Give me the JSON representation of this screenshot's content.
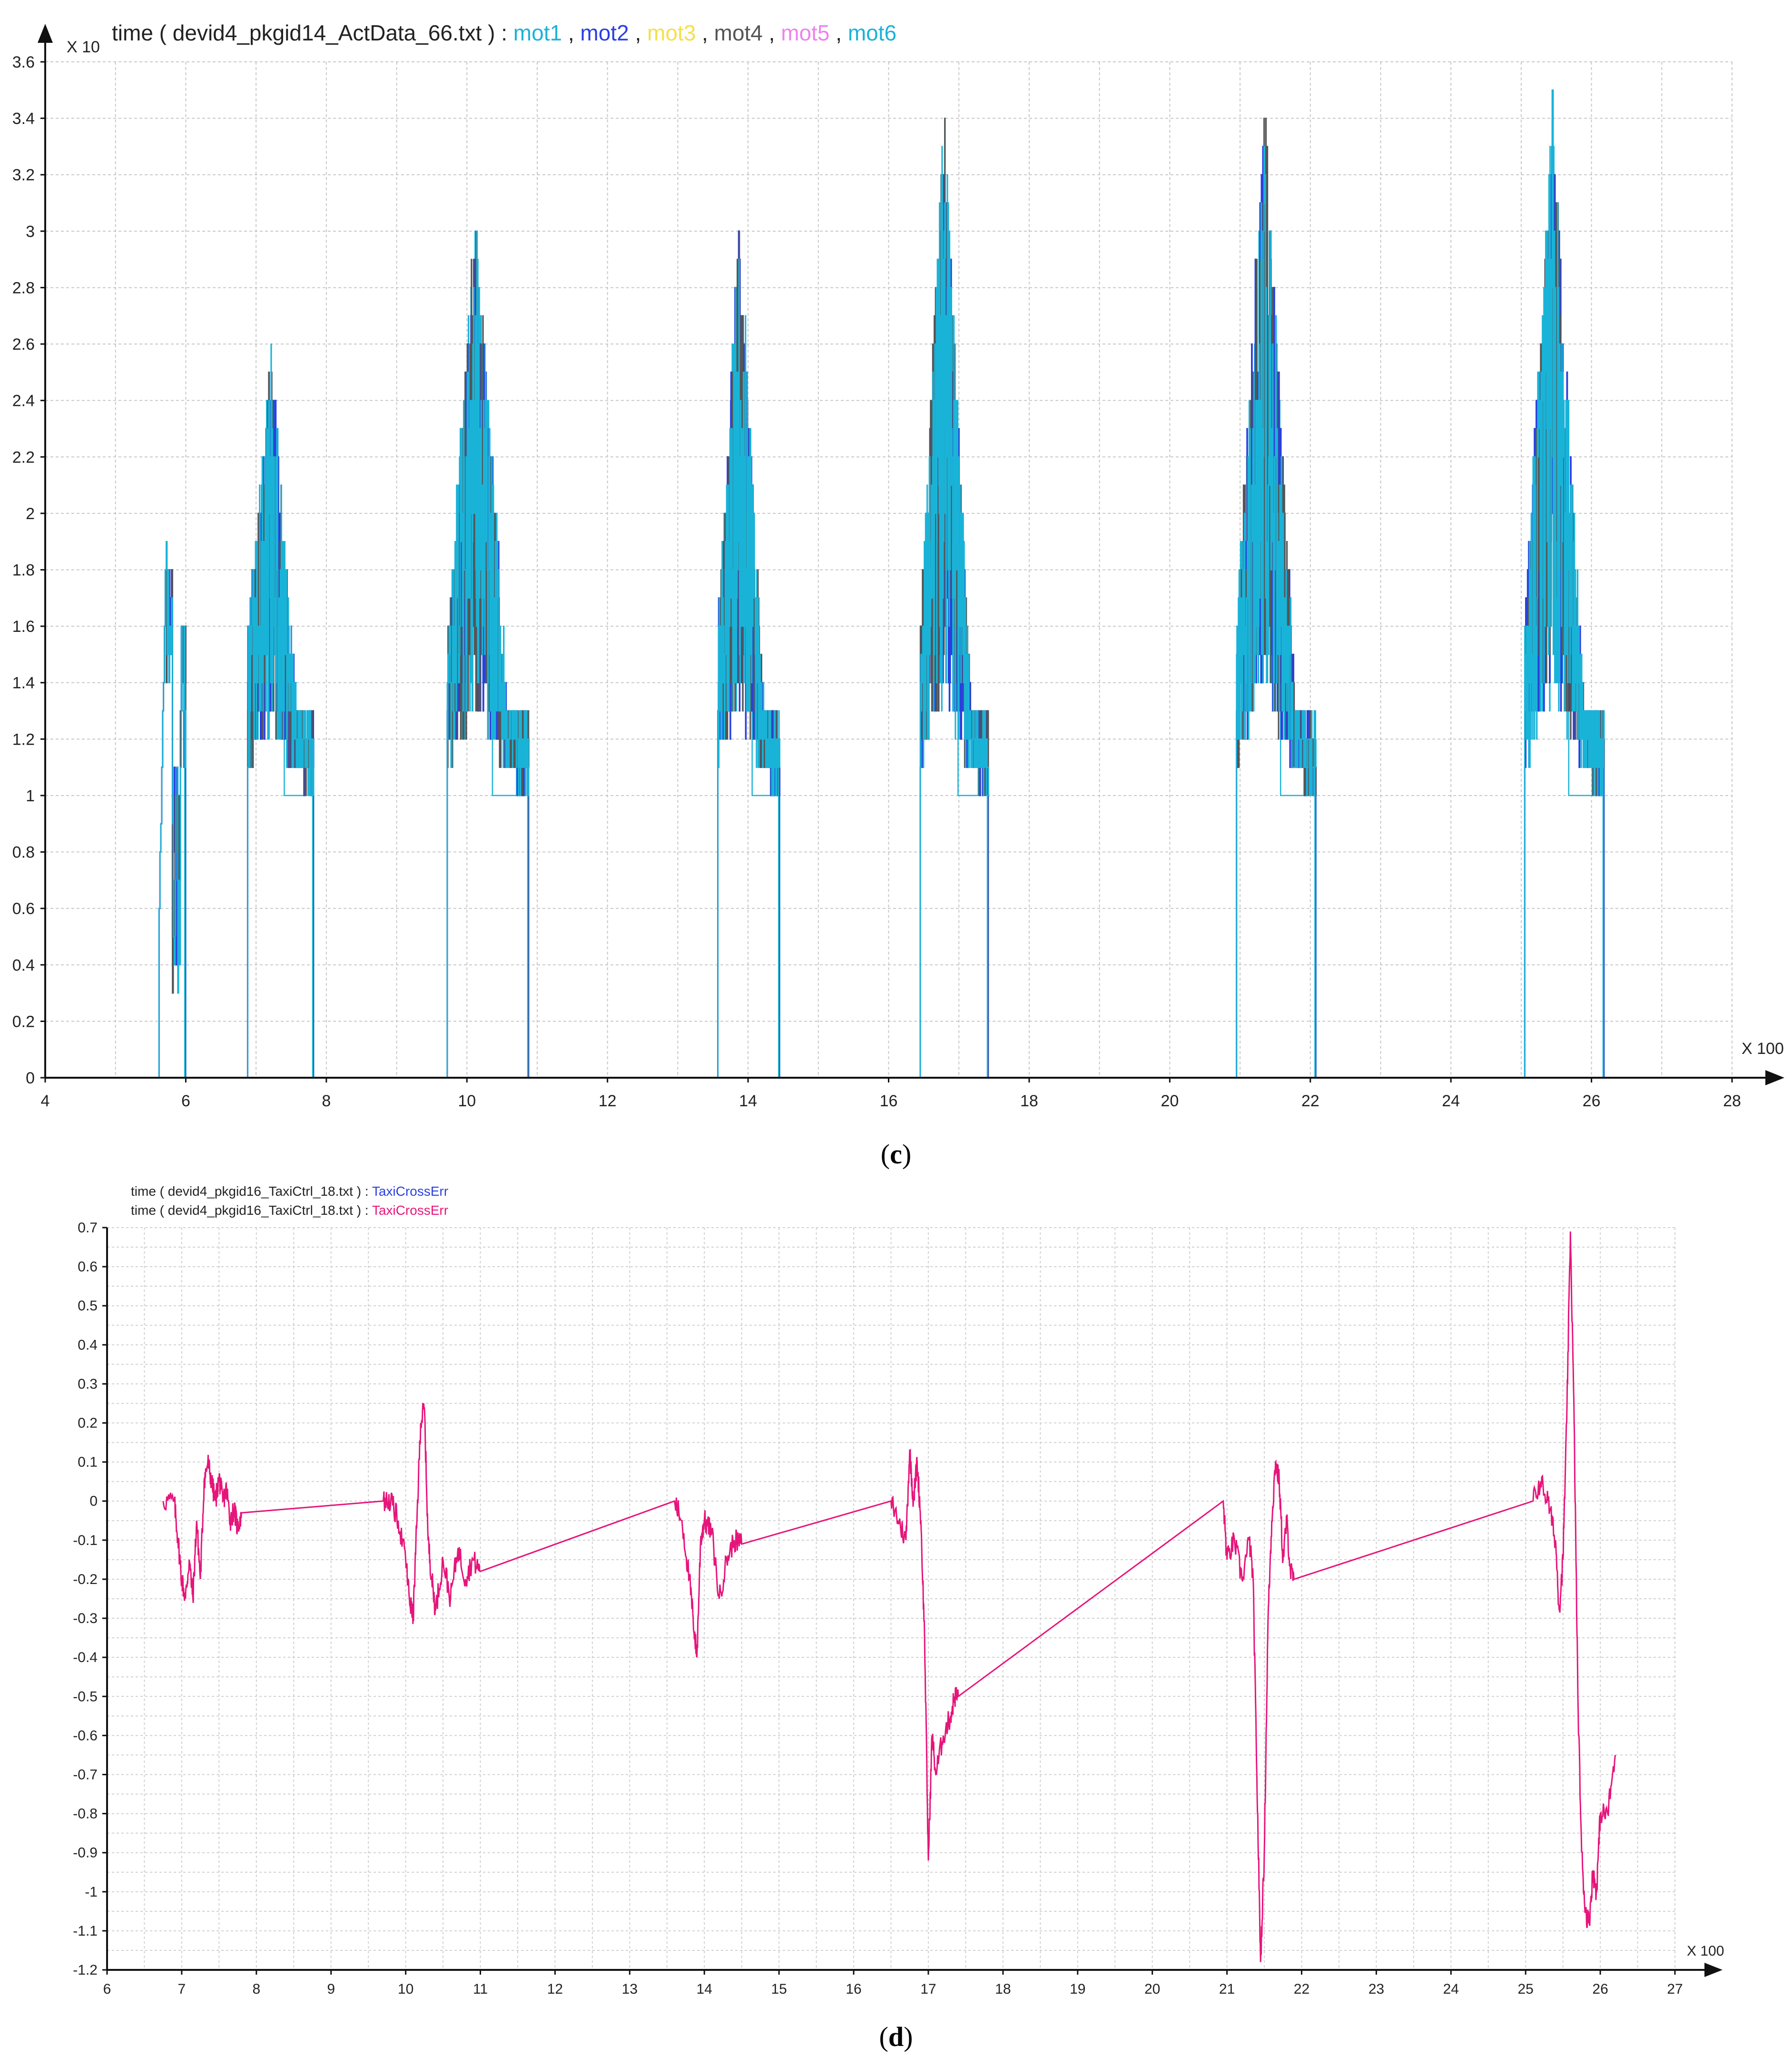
{
  "chart_data": [
    {
      "type": "line",
      "panel_label": "c",
      "title": {
        "prefix": "time ( devid4_pkgid14_ActData_66.txt ) : ",
        "separator": " , "
      },
      "x_multiplier": "X 100",
      "y_multiplier": "X 10",
      "xlim": [
        4,
        28
      ],
      "ylim": [
        0,
        3.6
      ],
      "x_ticks": [
        "4",
        "6",
        "8",
        "10",
        "12",
        "14",
        "16",
        "18",
        "20",
        "22",
        "24",
        "26",
        "28"
      ],
      "y_ticks": [
        "0",
        "0.2",
        "0.4",
        "0.6",
        "0.8",
        "1",
        "1.2",
        "1.4",
        "1.6",
        "1.8",
        "2",
        "2.2",
        "2.4",
        "2.6",
        "2.8",
        "3",
        "3.2",
        "3.4",
        "3.6"
      ],
      "grid": true,
      "legend": "inline-title",
      "series": [
        {
          "name": "mot1",
          "color": "#1ab3d8"
        },
        {
          "name": "mot2",
          "color": "#2a3fe0"
        },
        {
          "name": "mot3",
          "color": "#f4e04a"
        },
        {
          "name": "mot4",
          "color": "#555555"
        },
        {
          "name": "mot5",
          "color": "#ee82ee"
        },
        {
          "name": "mot6",
          "color": "#1ab3d8"
        }
      ],
      "bursts": [
        {
          "start": 5.62,
          "end": 6.0,
          "low": 1.1,
          "peak": 1.9,
          "dip": 0.3
        },
        {
          "start": 6.88,
          "end": 7.82,
          "low": 1.0,
          "peak": 2.6
        },
        {
          "start": 9.72,
          "end": 10.88,
          "low": 1.0,
          "peak": 3.1
        },
        {
          "start": 13.57,
          "end": 14.45,
          "low": 1.0,
          "peak": 3.1
        },
        {
          "start": 16.45,
          "end": 17.42,
          "low": 1.0,
          "peak": 3.5
        },
        {
          "start": 20.95,
          "end": 22.08,
          "low": 1.0,
          "peak": 3.5
        },
        {
          "start": 25.05,
          "end": 26.18,
          "low": 1.0,
          "peak": 3.5
        }
      ]
    },
    {
      "type": "line",
      "panel_label": "d",
      "legend_lines": [
        {
          "prefix": "time ( devid4_pkgid16_TaxiCtrl_18.txt ) : ",
          "name": "TaxiCrossErr",
          "color": "#2a3fe0"
        },
        {
          "prefix": "time ( devid4_pkgid16_TaxiCtrl_18.txt ) : ",
          "name": "TaxiCrossErr",
          "color": "#e6157a"
        }
      ],
      "x_multiplier": "X 100",
      "xlim": [
        6,
        27
      ],
      "ylim": [
        -1.2,
        0.7
      ],
      "x_ticks": [
        "6",
        "7",
        "8",
        "9",
        "10",
        "11",
        "12",
        "13",
        "14",
        "15",
        "16",
        "17",
        "18",
        "19",
        "20",
        "21",
        "22",
        "23",
        "24",
        "25",
        "26",
        "27"
      ],
      "y_ticks": [
        "0.7",
        "0.6",
        "0.5",
        "0.4",
        "0.3",
        "0.2",
        "0.1",
        "0",
        "-0.1",
        "-0.2",
        "-0.3",
        "-0.4",
        "-0.5",
        "-0.6",
        "-0.7",
        "-0.8",
        "-0.9",
        "-1",
        "-1.1",
        "-1.2"
      ],
      "grid": true,
      "line_color": "#e6157a",
      "x": [
        6.75,
        6.9,
        6.95,
        7.0,
        7.05,
        7.1,
        7.15,
        7.2,
        7.25,
        7.3,
        7.35,
        7.4,
        7.45,
        7.5,
        7.55,
        7.6,
        7.65,
        7.7,
        7.75,
        7.8,
        9.7,
        9.8,
        9.9,
        10.0,
        10.05,
        10.1,
        10.15,
        10.2,
        10.25,
        10.3,
        10.35,
        10.4,
        10.5,
        10.6,
        10.7,
        10.8,
        10.9,
        11.0,
        13.6,
        13.7,
        13.8,
        13.85,
        13.9,
        13.95,
        14.0,
        14.1,
        14.2,
        14.3,
        14.4,
        14.5,
        16.5,
        16.6,
        16.7,
        16.75,
        16.8,
        16.85,
        16.9,
        16.95,
        17.0,
        17.05,
        17.1,
        17.2,
        17.3,
        17.35,
        17.4,
        20.95,
        21.0,
        21.1,
        21.2,
        21.3,
        21.35,
        21.4,
        21.45,
        21.5,
        21.55,
        21.6,
        21.65,
        21.7,
        21.75,
        21.8,
        21.85,
        21.9,
        25.1,
        25.2,
        25.3,
        25.4,
        25.45,
        25.5,
        25.55,
        25.6,
        25.65,
        25.7,
        25.75,
        25.8,
        25.85,
        25.9,
        25.95,
        26.0,
        26.1,
        26.2
      ],
      "y": [
        0,
        0,
        -0.1,
        -0.2,
        -0.25,
        -0.15,
        -0.25,
        -0.05,
        -0.2,
        0.05,
        0.1,
        0.05,
        0.0,
        0.06,
        0.0,
        0.03,
        -0.05,
        -0.02,
        -0.07,
        -0.03,
        0.0,
        0.0,
        -0.05,
        -0.15,
        -0.25,
        -0.3,
        -0.05,
        0.2,
        0.24,
        -0.1,
        -0.2,
        -0.28,
        -0.15,
        -0.25,
        -0.12,
        -0.2,
        -0.15,
        -0.18,
        0.0,
        -0.05,
        -0.2,
        -0.3,
        -0.4,
        -0.1,
        -0.05,
        -0.08,
        -0.25,
        -0.15,
        -0.1,
        -0.11,
        0.0,
        -0.05,
        -0.1,
        0.13,
        0.0,
        0.1,
        -0.05,
        -0.35,
        -0.92,
        -0.6,
        -0.7,
        -0.6,
        -0.55,
        -0.5,
        -0.5,
        0.0,
        -0.15,
        -0.1,
        -0.2,
        -0.1,
        -0.2,
        -0.7,
        -1.18,
        -0.9,
        -0.3,
        -0.05,
        0.1,
        0.05,
        -0.15,
        -0.05,
        -0.18,
        -0.2,
        0.0,
        0.05,
        0.0,
        -0.1,
        -0.28,
        -0.15,
        0.2,
        0.69,
        0.2,
        -0.5,
        -0.9,
        -1.05,
        -1.08,
        -0.95,
        -1.0,
        -0.8,
        -0.8,
        -0.65
      ]
    }
  ]
}
